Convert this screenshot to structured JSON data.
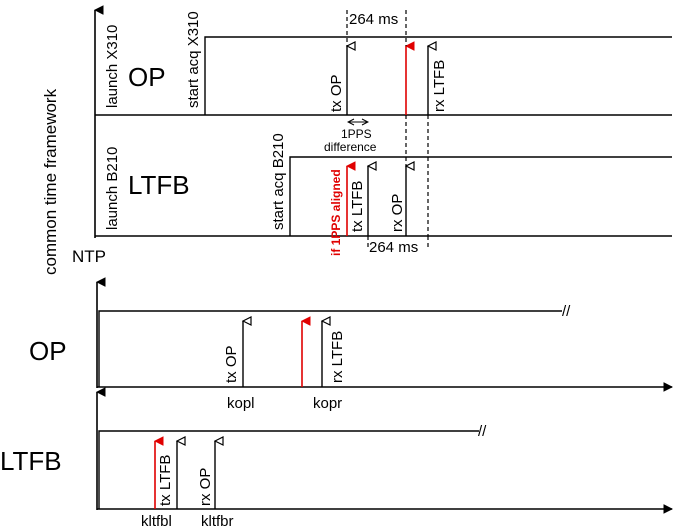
{
  "timeline_top": {
    "y_axis_label": "common time framework",
    "ntp_label": "NTP",
    "op_label": "OP",
    "ltfb_label": "LTFB",
    "launch_x310": "launch X310",
    "start_acq_x310": "start acq X310",
    "launch_b210": "launch B210",
    "start_acq_b210": "start acq B210",
    "tx_op": "tx OP",
    "rx_ltfb": "rx LTFB",
    "tx_ltfb": "tx LTFB",
    "rx_op": "rx OP",
    "delay_top": "264 ms",
    "delay_bottom": "264 ms",
    "pps_diff_line1": "1PPS",
    "pps_diff_line2": "difference",
    "pps_aligned_note": "if 1PPS aligned"
  },
  "timeline_bottom": {
    "op_label": "OP",
    "ltfb_label": "LTFB",
    "tx_op": "tx OP",
    "rx_ltfb": "rx LTFB",
    "tx_ltfb": "tx LTFB",
    "rx_op": "rx OP",
    "kopl": "kopl",
    "kopr": "kopr",
    "kltfbl": "kltfbl",
    "kltfbr": "kltfbr"
  },
  "colors": {
    "line": "#000000",
    "highlight": "#e00000"
  }
}
